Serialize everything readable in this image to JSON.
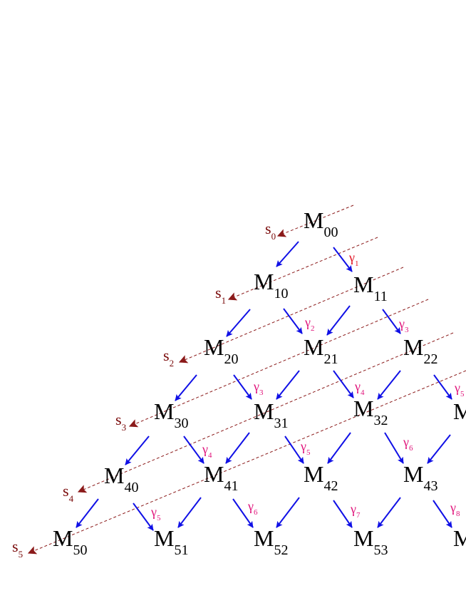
{
  "colors": {
    "arrow": "#1010e6",
    "dashed": "#8b1a1a",
    "s_label": "#7a0a0a",
    "gamma_label": "#e0137a",
    "gamma_first": "#e01020"
  },
  "nodes": [
    {
      "label": "M",
      "sub": "00"
    },
    {
      "label": "M",
      "sub": "10"
    },
    {
      "label": "M",
      "sub": "11"
    },
    {
      "label": "M",
      "sub": "20"
    },
    {
      "label": "M",
      "sub": "21"
    },
    {
      "label": "M",
      "sub": "22"
    },
    {
      "label": "M",
      "sub": "30"
    },
    {
      "label": "M",
      "sub": "31"
    },
    {
      "label": "M",
      "sub": "32"
    },
    {
      "label": "M",
      "sub": ""
    },
    {
      "label": "M",
      "sub": "40"
    },
    {
      "label": "M",
      "sub": "41"
    },
    {
      "label": "M",
      "sub": "42"
    },
    {
      "label": "M",
      "sub": "43"
    },
    {
      "label": "M",
      "sub": "50"
    },
    {
      "label": "M",
      "sub": "51"
    },
    {
      "label": "M",
      "sub": "52"
    },
    {
      "label": "M",
      "sub": "53"
    },
    {
      "label": "M",
      "sub": ""
    }
  ],
  "s_labels": [
    {
      "label": "s",
      "sub": "0"
    },
    {
      "label": "s",
      "sub": "1"
    },
    {
      "label": "s",
      "sub": "2"
    },
    {
      "label": "s",
      "sub": "3"
    },
    {
      "label": "s",
      "sub": "4"
    },
    {
      "label": "s",
      "sub": "5"
    }
  ],
  "gamma_labels": [
    {
      "label": "γ",
      "sub": "1"
    },
    {
      "label": "γ",
      "sub": "2"
    },
    {
      "label": "γ",
      "sub": "3"
    },
    {
      "label": "γ",
      "sub": "3"
    },
    {
      "label": "γ",
      "sub": "4"
    },
    {
      "label": "γ",
      "sub": "5"
    },
    {
      "label": "γ",
      "sub": "4"
    },
    {
      "label": "γ",
      "sub": "5"
    },
    {
      "label": "γ",
      "sub": "6"
    },
    {
      "label": "γ",
      "sub": "5"
    },
    {
      "label": "γ",
      "sub": "6"
    },
    {
      "label": "γ",
      "sub": "7"
    },
    {
      "label": "γ",
      "sub": "8"
    }
  ]
}
